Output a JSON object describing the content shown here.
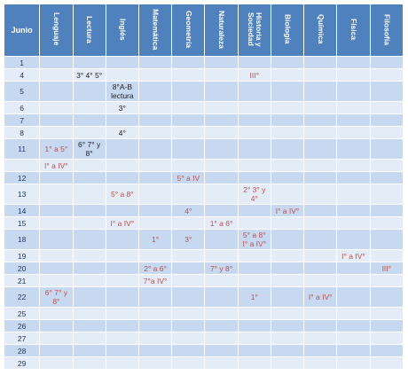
{
  "table": {
    "header": [
      "Junio",
      "Lenguaje",
      "Lectura",
      "Inglés",
      "Matemática",
      "Geometría",
      "Naturaleza",
      "Historia y Sociedad",
      "Biología",
      "Química",
      "Física",
      "Filosofía"
    ],
    "rows": [
      {
        "day": "1",
        "cells": [
          null,
          null,
          null,
          null,
          null,
          null,
          null,
          null,
          null,
          null,
          null
        ]
      },
      {
        "day": "4",
        "cells": [
          null,
          {
            "text": "3° 4° 5°",
            "color": "#222222"
          },
          null,
          null,
          null,
          null,
          {
            "text": "III°",
            "color": "#c0504d"
          },
          null,
          null,
          null,
          null
        ]
      },
      {
        "day": "5",
        "cells": [
          null,
          null,
          {
            "text": "8°A-B\nlectura",
            "color": "#222222"
          },
          null,
          null,
          null,
          null,
          null,
          null,
          null,
          null
        ]
      },
      {
        "day": "6",
        "cells": [
          null,
          null,
          {
            "text": "3°",
            "color": "#222222"
          },
          null,
          null,
          null,
          null,
          null,
          null,
          null,
          null
        ]
      },
      {
        "day": "7",
        "cells": [
          null,
          null,
          null,
          null,
          null,
          null,
          null,
          null,
          null,
          null,
          null
        ]
      },
      {
        "day": "8",
        "cells": [
          null,
          null,
          {
            "text": "4°",
            "color": "#222222"
          },
          null,
          null,
          null,
          null,
          null,
          null,
          null,
          null
        ]
      },
      {
        "day": "11",
        "cells": [
          {
            "text": "1° a 5°",
            "color": "#c0504d"
          },
          {
            "text": "6° 7° y\n8°",
            "color": "#222222"
          },
          null,
          null,
          null,
          null,
          null,
          null,
          null,
          null,
          null
        ]
      },
      {
        "day": null,
        "cells": [
          {
            "text": "I° a IV°",
            "color": "#c0504d"
          },
          null,
          null,
          null,
          null,
          null,
          null,
          null,
          null,
          null,
          null
        ]
      },
      {
        "day": "12",
        "cells": [
          null,
          null,
          null,
          null,
          {
            "text": "5° a IV",
            "color": "#c0504d"
          },
          null,
          null,
          null,
          null,
          null,
          null
        ]
      },
      {
        "day": "13",
        "cells": [
          null,
          null,
          {
            "text": "5° a 8°",
            "color": "#c0504d"
          },
          null,
          null,
          null,
          {
            "text": "2° 3° y\n4°",
            "color": "#c0504d"
          },
          null,
          null,
          null,
          null
        ]
      },
      {
        "day": "14",
        "cells": [
          null,
          null,
          null,
          null,
          {
            "text": "4°",
            "color": "#c0504d"
          },
          null,
          null,
          {
            "text": "I° a IV°",
            "color": "#c0504d"
          },
          null,
          null,
          null
        ]
      },
      {
        "day": "15",
        "cells": [
          null,
          null,
          {
            "text": "I° a IV°",
            "color": "#c0504d"
          },
          null,
          null,
          {
            "text": "1° a 6°",
            "color": "#c0504d"
          },
          null,
          null,
          null,
          null,
          null
        ]
      },
      {
        "day": "18",
        "cells": [
          null,
          null,
          null,
          {
            "text": "1°",
            "color": "#c0504d"
          },
          {
            "text": "3°",
            "color": "#c0504d"
          },
          null,
          {
            "text": "5° a 8°\nI° a IV°",
            "color": "#c0504d"
          },
          null,
          null,
          null,
          null
        ]
      },
      {
        "day": "19",
        "cells": [
          null,
          null,
          null,
          null,
          null,
          null,
          null,
          null,
          null,
          {
            "text": "I° a IV°",
            "color": "#c0504d"
          },
          null
        ]
      },
      {
        "day": "20",
        "cells": [
          null,
          null,
          null,
          {
            "text": "2° a  6°",
            "color": "#c0504d"
          },
          null,
          {
            "text": "7° y 8°",
            "color": "#c0504d"
          },
          null,
          null,
          null,
          null,
          {
            "text": "III°",
            "color": "#c0504d"
          }
        ]
      },
      {
        "day": "21",
        "cells": [
          null,
          null,
          null,
          {
            "text": "7°a IV°",
            "color": "#c0504d"
          },
          null,
          null,
          null,
          null,
          null,
          null,
          null
        ]
      },
      {
        "day": "22",
        "cells": [
          {
            "text": "6° 7° y\n8°",
            "color": "#c0504d"
          },
          null,
          null,
          null,
          null,
          null,
          {
            "text": "1°",
            "color": "#c0504d"
          },
          null,
          {
            "text": "I° a IV°",
            "color": "#c0504d"
          },
          null,
          null
        ]
      },
      {
        "day": "25",
        "cells": [
          null,
          null,
          null,
          null,
          null,
          null,
          null,
          null,
          null,
          null,
          null
        ]
      },
      {
        "day": "26",
        "cells": [
          null,
          null,
          null,
          null,
          null,
          null,
          null,
          null,
          null,
          null,
          null
        ]
      },
      {
        "day": "27",
        "cells": [
          null,
          null,
          null,
          null,
          null,
          null,
          null,
          null,
          null,
          null,
          null
        ]
      },
      {
        "day": "28",
        "cells": [
          null,
          null,
          null,
          null,
          null,
          null,
          null,
          null,
          null,
          null,
          null
        ]
      },
      {
        "day": "29",
        "cells": [
          null,
          null,
          null,
          null,
          null,
          null,
          null,
          null,
          null,
          null,
          null
        ]
      }
    ]
  }
}
